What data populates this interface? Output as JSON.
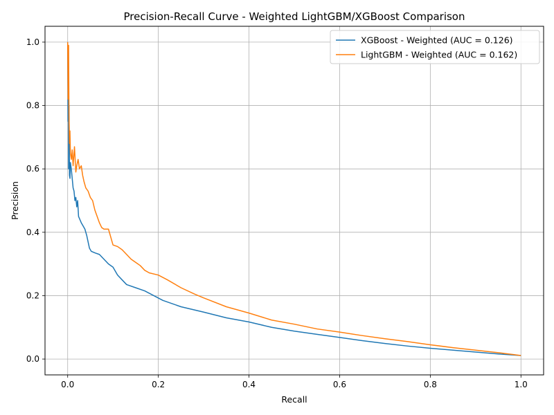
{
  "chart_data": {
    "type": "line",
    "title": "Precision-Recall Curve - Weighted LightGBM/XGBoost Comparison",
    "xlabel": "Recall",
    "ylabel": "Precision",
    "xlim": [
      -0.05,
      1.05
    ],
    "ylim": [
      -0.05,
      1.05
    ],
    "xticks": [
      0.0,
      0.2,
      0.4,
      0.6,
      0.8,
      1.0
    ],
    "yticks": [
      0.0,
      0.2,
      0.4,
      0.6,
      0.8,
      1.0
    ],
    "xtick_labels": [
      "0.0",
      "0.2",
      "0.4",
      "0.6",
      "0.8",
      "1.0"
    ],
    "ytick_labels": [
      "0.0",
      "0.2",
      "0.4",
      "0.6",
      "0.8",
      "1.0"
    ],
    "grid": true,
    "legend_position": "top-right",
    "series": [
      {
        "name": "XGBoost - Weighted (AUC = 0.126)",
        "color": "#1f77b4",
        "points": [
          [
            0.0,
            1.0
          ],
          [
            0.0008,
            0.75
          ],
          [
            0.0015,
            0.87
          ],
          [
            0.002,
            0.6
          ],
          [
            0.003,
            0.8
          ],
          [
            0.004,
            0.58
          ],
          [
            0.005,
            0.57
          ],
          [
            0.006,
            0.62
          ],
          [
            0.008,
            0.6
          ],
          [
            0.01,
            0.57
          ],
          [
            0.012,
            0.54
          ],
          [
            0.014,
            0.53
          ],
          [
            0.016,
            0.5
          ],
          [
            0.018,
            0.51
          ],
          [
            0.02,
            0.48
          ],
          [
            0.022,
            0.5
          ],
          [
            0.024,
            0.45
          ],
          [
            0.027,
            0.44
          ],
          [
            0.03,
            0.43
          ],
          [
            0.034,
            0.42
          ],
          [
            0.038,
            0.41
          ],
          [
            0.042,
            0.39
          ],
          [
            0.045,
            0.37
          ],
          [
            0.048,
            0.35
          ],
          [
            0.052,
            0.34
          ],
          [
            0.06,
            0.335
          ],
          [
            0.07,
            0.33
          ],
          [
            0.08,
            0.315
          ],
          [
            0.09,
            0.3
          ],
          [
            0.1,
            0.29
          ],
          [
            0.11,
            0.265
          ],
          [
            0.12,
            0.25
          ],
          [
            0.13,
            0.235
          ],
          [
            0.15,
            0.225
          ],
          [
            0.17,
            0.215
          ],
          [
            0.19,
            0.2
          ],
          [
            0.21,
            0.185
          ],
          [
            0.25,
            0.165
          ],
          [
            0.3,
            0.148
          ],
          [
            0.35,
            0.13
          ],
          [
            0.4,
            0.117
          ],
          [
            0.45,
            0.1
          ],
          [
            0.5,
            0.088
          ],
          [
            0.55,
            0.078
          ],
          [
            0.6,
            0.068
          ],
          [
            0.65,
            0.058
          ],
          [
            0.7,
            0.049
          ],
          [
            0.75,
            0.041
          ],
          [
            0.8,
            0.034
          ],
          [
            0.85,
            0.028
          ],
          [
            0.9,
            0.022
          ],
          [
            0.95,
            0.016
          ],
          [
            1.0,
            0.011
          ]
        ]
      },
      {
        "name": "LightGBM - Weighted (AUC = 0.162)",
        "color": "#ff7f0e",
        "points": [
          [
            0.0,
            1.0
          ],
          [
            0.001,
            0.82
          ],
          [
            0.002,
            0.99
          ],
          [
            0.003,
            0.75
          ],
          [
            0.004,
            0.68
          ],
          [
            0.005,
            0.72
          ],
          [
            0.006,
            0.65
          ],
          [
            0.008,
            0.63
          ],
          [
            0.01,
            0.66
          ],
          [
            0.012,
            0.61
          ],
          [
            0.015,
            0.67
          ],
          [
            0.018,
            0.59
          ],
          [
            0.02,
            0.61
          ],
          [
            0.023,
            0.63
          ],
          [
            0.026,
            0.6
          ],
          [
            0.03,
            0.61
          ],
          [
            0.033,
            0.58
          ],
          [
            0.036,
            0.56
          ],
          [
            0.04,
            0.54
          ],
          [
            0.045,
            0.53
          ],
          [
            0.05,
            0.51
          ],
          [
            0.055,
            0.5
          ],
          [
            0.06,
            0.47
          ],
          [
            0.065,
            0.45
          ],
          [
            0.07,
            0.43
          ],
          [
            0.075,
            0.415
          ],
          [
            0.08,
            0.41
          ],
          [
            0.09,
            0.41
          ],
          [
            0.1,
            0.36
          ],
          [
            0.11,
            0.355
          ],
          [
            0.12,
            0.345
          ],
          [
            0.13,
            0.33
          ],
          [
            0.14,
            0.315
          ],
          [
            0.16,
            0.295
          ],
          [
            0.17,
            0.28
          ],
          [
            0.18,
            0.272
          ],
          [
            0.2,
            0.265
          ],
          [
            0.22,
            0.25
          ],
          [
            0.25,
            0.225
          ],
          [
            0.28,
            0.205
          ],
          [
            0.3,
            0.193
          ],
          [
            0.35,
            0.165
          ],
          [
            0.4,
            0.145
          ],
          [
            0.45,
            0.123
          ],
          [
            0.5,
            0.11
          ],
          [
            0.55,
            0.095
          ],
          [
            0.6,
            0.085
          ],
          [
            0.65,
            0.074
          ],
          [
            0.7,
            0.064
          ],
          [
            0.75,
            0.055
          ],
          [
            0.8,
            0.045
          ],
          [
            0.85,
            0.036
          ],
          [
            0.9,
            0.028
          ],
          [
            0.95,
            0.02
          ],
          [
            1.0,
            0.011
          ]
        ]
      }
    ]
  }
}
